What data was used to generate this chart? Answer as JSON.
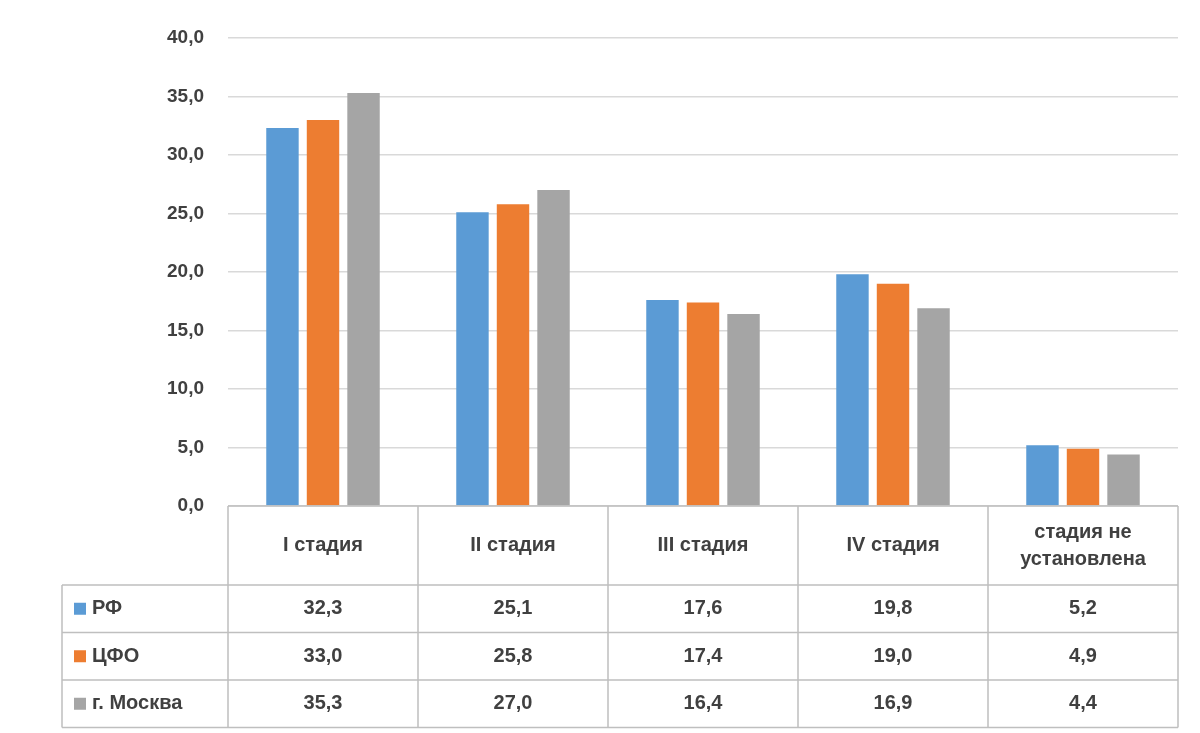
{
  "chart_data": {
    "type": "bar",
    "categories": [
      "I стадия",
      "II стадия",
      "III стадия",
      "IV стадия",
      "стадия не установлена"
    ],
    "series": [
      {
        "name": "РФ",
        "color": "#5b9bd5",
        "values": [
          32.3,
          25.1,
          17.6,
          19.8,
          5.2
        ],
        "value_labels": [
          "32,3",
          "25,1",
          "17,6",
          "19,8",
          "5,2"
        ]
      },
      {
        "name": "ЦФО",
        "color": "#ed7d31",
        "values": [
          33.0,
          25.8,
          17.4,
          19.0,
          4.9
        ],
        "value_labels": [
          "33,0",
          "25,8",
          "17,4",
          "19,0",
          "4,9"
        ]
      },
      {
        "name": "г. Москва",
        "color": "#a5a5a5",
        "values": [
          35.3,
          27.0,
          16.4,
          16.9,
          4.4
        ],
        "value_labels": [
          "35,3",
          "27,0",
          "16,4",
          "16,9",
          "4,4"
        ]
      }
    ],
    "ylim": [
      0,
      40
    ],
    "yticks": [
      {
        "value": 0,
        "label": "0,0"
      },
      {
        "value": 5,
        "label": "5,0"
      },
      {
        "value": 10,
        "label": "10,0"
      },
      {
        "value": 15,
        "label": "15,0"
      },
      {
        "value": 20,
        "label": "20,0"
      },
      {
        "value": 25,
        "label": "25,0"
      },
      {
        "value": 30,
        "label": "30,0"
      },
      {
        "value": 35,
        "label": "35,0"
      },
      {
        "value": 40,
        "label": "40,0"
      }
    ],
    "grid": "y",
    "legend": "bottom"
  }
}
